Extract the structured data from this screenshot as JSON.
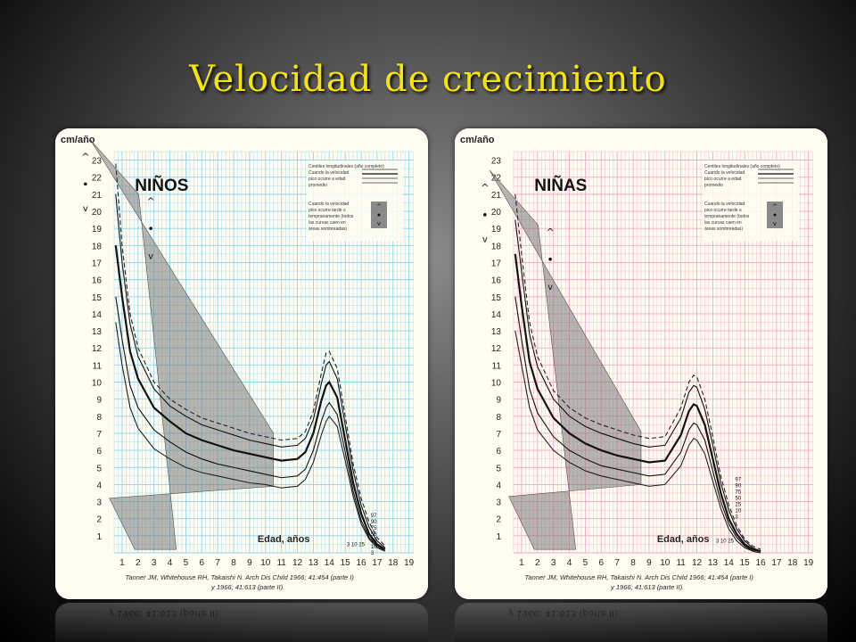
{
  "slide": {
    "title": "Velocidad de crecimiento"
  },
  "charts": [
    {
      "id": "ninos",
      "heading": "NIÑOS",
      "ylabel": "cm/año",
      "xlabel": "Edad, años",
      "yticks": [
        1,
        2,
        3,
        4,
        5,
        6,
        7,
        8,
        9,
        10,
        11,
        12,
        13,
        14,
        15,
        16,
        17,
        18,
        19,
        20,
        21,
        22,
        23
      ],
      "xticks": [
        1,
        2,
        3,
        4,
        5,
        6,
        7,
        8,
        9,
        10,
        11,
        12,
        13,
        14,
        15,
        16,
        17,
        18,
        19
      ],
      "ylim": [
        0,
        23.5
      ],
      "xlim": [
        0.5,
        19.3
      ],
      "grid_color": "#8fd3ec",
      "paper_color": "#fffdf2",
      "percentile_labels": [
        "97",
        "90",
        "75",
        "50",
        "25",
        "10",
        "3"
      ],
      "early_percentile_labels": "3 10 25",
      "legend_text": [
        "Centiles longitudinales (año completo)",
        "Cuando la velocidad",
        "pico ocurre a edad",
        "promedio",
        "Cuando la velocidad",
        "pico ocurre tarde o",
        "tempranamente (todos",
        "las curvas caen en",
        "áreas sombreadas)"
      ],
      "citation_line1": "Tanner JM, Whitehouse RH, Takaishi N. Arch Dis Child 1966; 41:454 (parte I)",
      "citation_line2": "y 1966; 41:613 (parte II).",
      "chart_data": {
        "type": "line",
        "title": "NIÑOS",
        "xlabel": "Edad, años",
        "ylabel": "cm/año",
        "ylim": [
          0,
          23.5
        ],
        "xlim": [
          0.5,
          19.3
        ],
        "grid": true,
        "series": [
          {
            "name": "97",
            "x": [
              0.6,
              1,
              1.5,
              2,
              3,
              4,
              5,
              6,
              7,
              8,
              9,
              10,
              11,
              12,
              12.5,
              13,
              13.5,
              13.8,
              14,
              14.5,
              15,
              15.5,
              16,
              16.5,
              17,
              17.5
            ],
            "values": [
              22.8,
              18,
              14,
              12,
              10,
              9,
              8.4,
              7.9,
              7.6,
              7.3,
              7,
              6.8,
              6.6,
              6.7,
              7.1,
              8.3,
              10.5,
              11.7,
              11.8,
              10.8,
              8,
              5.2,
              3.2,
              1.8,
              0.9,
              0.4
            ]
          },
          {
            "name": "90",
            "x": [
              0.6,
              1,
              1.5,
              2,
              3,
              4,
              5,
              6,
              7,
              8,
              9,
              10,
              11,
              12,
              12.5,
              13,
              13.5,
              13.8,
              14,
              14.5,
              15,
              15.5,
              16,
              16.5,
              17,
              17.5
            ],
            "values": [
              21,
              17,
              13.4,
              11.5,
              9.6,
              8.6,
              8,
              7.5,
              7.2,
              6.9,
              6.6,
              6.4,
              6.2,
              6.3,
              6.7,
              7.8,
              9.9,
              11,
              11.2,
              10.2,
              7.5,
              4.8,
              2.8,
              1.5,
              0.7,
              0.3
            ]
          },
          {
            "name": "50",
            "x": [
              0.6,
              1,
              1.5,
              2,
              3,
              4,
              5,
              6,
              7,
              8,
              9,
              10,
              11,
              12,
              12.5,
              13,
              13.5,
              13.8,
              14,
              14.5,
              15,
              15.5,
              16,
              16.5,
              17,
              17.5
            ],
            "values": [
              18,
              15,
              11.8,
              10.2,
              8.5,
              7.7,
              7,
              6.6,
              6.3,
              6,
              5.8,
              5.6,
              5.4,
              5.5,
              5.9,
              7,
              8.9,
              9.8,
              10,
              9.1,
              6.6,
              4.1,
              2.3,
              1.1,
              0.5,
              0.2
            ]
          },
          {
            "name": "10",
            "x": [
              0.6,
              1,
              1.5,
              2,
              3,
              4,
              5,
              6,
              7,
              8,
              9,
              10,
              11,
              12,
              12.5,
              13,
              13.5,
              13.8,
              14,
              14.5,
              15,
              15.5,
              16,
              16.5,
              17,
              17.5
            ],
            "values": [
              15,
              12.5,
              9.8,
              8.5,
              7.2,
              6.5,
              5.9,
              5.5,
              5.2,
              5,
              4.8,
              4.6,
              4.4,
              4.5,
              4.9,
              6,
              7.7,
              8.5,
              8.8,
              8.1,
              5.9,
              3.6,
              1.9,
              0.9,
              0.4,
              0.1
            ]
          },
          {
            "name": "3",
            "x": [
              0.6,
              1,
              1.5,
              2,
              3,
              4,
              5,
              6,
              7,
              8,
              9,
              10,
              11,
              12,
              12.5,
              13,
              13.5,
              13.8,
              14,
              14.5,
              15,
              15.5,
              16,
              16.5,
              17,
              17.5
            ],
            "values": [
              13.5,
              11,
              8.5,
              7.3,
              6.1,
              5.5,
              5,
              4.7,
              4.5,
              4.3,
              4.1,
              4,
              3.8,
              3.9,
              4.3,
              5.3,
              6.9,
              7.7,
              8,
              7.4,
              5.4,
              3.3,
              1.7,
              0.8,
              0.3,
              0.1
            ]
          }
        ]
      }
    },
    {
      "id": "ninas",
      "heading": "NIÑAS",
      "ylabel": "cm/año",
      "xlabel": "Edad, años",
      "yticks": [
        1,
        2,
        3,
        4,
        5,
        6,
        7,
        8,
        9,
        10,
        11,
        12,
        13,
        14,
        15,
        16,
        17,
        18,
        19,
        20,
        21,
        22,
        23
      ],
      "xticks": [
        1,
        2,
        3,
        4,
        5,
        6,
        7,
        8,
        9,
        10,
        11,
        12,
        13,
        14,
        15,
        16,
        17,
        18,
        19
      ],
      "ylim": [
        0,
        23.5
      ],
      "xlim": [
        0.5,
        19.3
      ],
      "grid_color": "#f3a7c4",
      "paper_color": "#fffdf2",
      "percentile_labels": [
        "97",
        "90",
        "75",
        "50",
        "25",
        "10",
        "3"
      ],
      "early_percentile_labels": "3 10 25",
      "legend_text": [
        "Centiles longitudinales (año completo)",
        "Cuando la velocidad",
        "pico ocurre a edad",
        "promedio",
        "Cuando la velocidad",
        "pico ocurre tarde o",
        "tempranamente (todos",
        "las curvas caen en",
        "áreas sombreadas)"
      ],
      "citation_line1": "Tanner JM, Whitehouse RH, Takaishi N. Arch Dis Child 1966; 41:454 (parte I)",
      "citation_line2": "y 1966; 41:613 (parte II).",
      "chart_data": {
        "type": "line",
        "title": "NIÑAS",
        "xlabel": "Edad, años",
        "ylabel": "cm/año",
        "ylim": [
          0,
          23.5
        ],
        "xlim": [
          0.5,
          19.3
        ],
        "grid": true,
        "series": [
          {
            "name": "97",
            "x": [
              0.6,
              1,
              1.5,
              2,
              3,
              4,
              5,
              6,
              7,
              8,
              9,
              10,
              11,
              11.5,
              11.8,
              12,
              12.5,
              13,
              13.5,
              14,
              14.5,
              15,
              15.5,
              16
            ],
            "values": [
              21,
              17.5,
              13.5,
              11.5,
              9.5,
              8.5,
              7.9,
              7.5,
              7.2,
              6.9,
              6.7,
              6.8,
              8.5,
              10,
              10.4,
              10.3,
              9,
              6.8,
              4.5,
              2.8,
              1.6,
              0.8,
              0.4,
              0.2
            ]
          },
          {
            "name": "90",
            "x": [
              0.6,
              1,
              1.5,
              2,
              3,
              4,
              5,
              6,
              7,
              8,
              9,
              10,
              11,
              11.5,
              11.8,
              12,
              12.5,
              13,
              13.5,
              14,
              14.5,
              15,
              15.5,
              16
            ],
            "values": [
              19.5,
              16.5,
              12.8,
              10.9,
              9,
              8,
              7.4,
              7,
              6.7,
              6.4,
              6.2,
              6.3,
              7.9,
              9.4,
              9.8,
              9.7,
              8.4,
              6.3,
              4.1,
              2.5,
              1.4,
              0.7,
              0.3,
              0.1
            ]
          },
          {
            "name": "50",
            "x": [
              0.6,
              1,
              1.5,
              2,
              3,
              4,
              5,
              6,
              7,
              8,
              9,
              10,
              11,
              11.5,
              11.8,
              12,
              12.5,
              13,
              13.5,
              14,
              14.5,
              15,
              15.5,
              16
            ],
            "values": [
              17.5,
              14.5,
              11.2,
              9.6,
              7.9,
              7,
              6.4,
              6,
              5.7,
              5.5,
              5.3,
              5.4,
              6.9,
              8.3,
              8.7,
              8.6,
              7.5,
              5.5,
              3.5,
              2,
              1.1,
              0.5,
              0.2,
              0.1
            ]
          },
          {
            "name": "10",
            "x": [
              0.6,
              1,
              1.5,
              2,
              3,
              4,
              5,
              6,
              7,
              8,
              9,
              10,
              11,
              11.5,
              11.8,
              12,
              12.5,
              13,
              13.5,
              14,
              14.5,
              15,
              15.5,
              16
            ],
            "values": [
              15,
              12.5,
              9.6,
              8.2,
              6.8,
              6,
              5.5,
              5.1,
              4.9,
              4.7,
              4.5,
              4.6,
              5.9,
              7.2,
              7.6,
              7.5,
              6.6,
              4.8,
              3,
              1.7,
              0.9,
              0.4,
              0.1,
              0
            ]
          },
          {
            "name": "3",
            "x": [
              0.6,
              1,
              1.5,
              2,
              3,
              4,
              5,
              6,
              7,
              8,
              9,
              10,
              11,
              11.5,
              11.8,
              12,
              12.5,
              13,
              13.5,
              14,
              14.5,
              15,
              15.5,
              16
            ],
            "values": [
              13,
              11,
              8.5,
              7.2,
              6,
              5.3,
              4.8,
              4.5,
              4.3,
              4.1,
              3.9,
              4,
              5.1,
              6.3,
              6.7,
              6.6,
              5.8,
              4.2,
              2.6,
              1.4,
              0.7,
              0.3,
              0.1,
              0
            ]
          }
        ]
      }
    }
  ]
}
